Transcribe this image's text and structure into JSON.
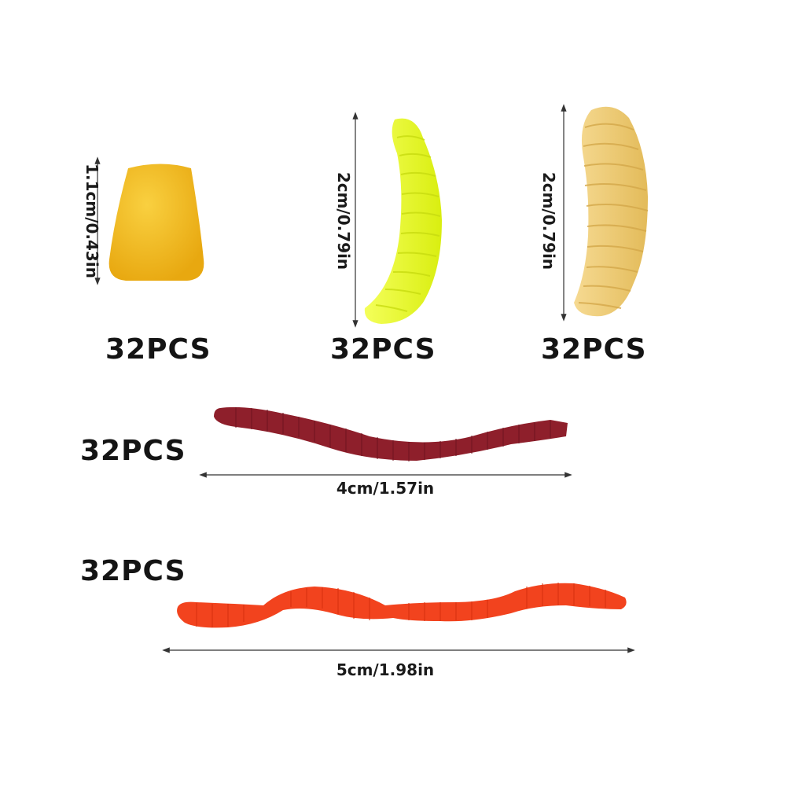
{
  "items": [
    {
      "id": "corn",
      "quantity": "32PCS",
      "dimension": "1.1cm/0.43in",
      "color": "#F2B81A"
    },
    {
      "id": "yellow-maggot",
      "quantity": "32PCS",
      "dimension": "2cm/0.79in",
      "color": "#E8F520"
    },
    {
      "id": "cream-maggot",
      "quantity": "32PCS",
      "dimension": "2cm/0.79in",
      "color": "#EDCB72"
    },
    {
      "id": "red-worm",
      "quantity": "32PCS",
      "dimension": "4cm/1.57in",
      "color": "#8E1F2B"
    },
    {
      "id": "orange-worm",
      "quantity": "32PCS",
      "dimension": "5cm/1.98in",
      "color": "#F2431E"
    }
  ]
}
